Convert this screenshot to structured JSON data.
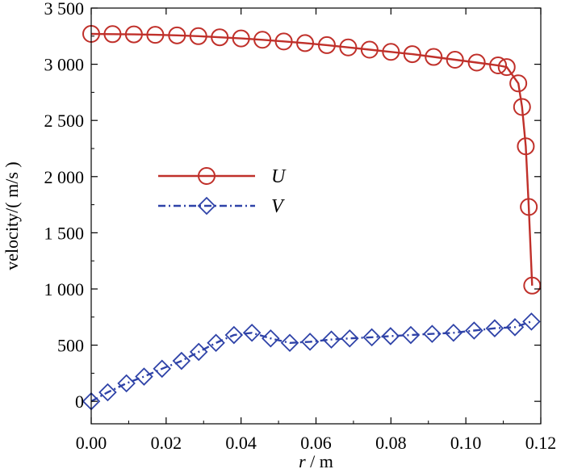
{
  "chart_data": {
    "type": "line",
    "xlabel_var": "r",
    "xlabel_unit": " / m",
    "ylabel": "velocity/( m/s )",
    "xlim": [
      0.0,
      0.12
    ],
    "ylim": [
      -200,
      3500
    ],
    "x_ticks": [
      0.0,
      0.02,
      0.04,
      0.06,
      0.08,
      0.1,
      0.12
    ],
    "x_tick_labels": [
      "0.00",
      "0.02",
      "0.04",
      "0.06",
      "0.08",
      "0.10",
      "0.12"
    ],
    "y_ticks": [
      0,
      500,
      1000,
      1500,
      2000,
      2500,
      3000,
      3500
    ],
    "y_tick_labels": [
      "0",
      "500",
      "1 000",
      "1 500",
      "2 000",
      "2 500",
      "3 000",
      "3 500"
    ],
    "grid": false,
    "legend_position": "middle-left",
    "series": [
      {
        "name": "U",
        "color": "#c0302a",
        "marker": "circle",
        "line": "solid",
        "points": [
          [
            0.0,
            3270
          ],
          [
            0.0057,
            3268
          ],
          [
            0.0114,
            3266
          ],
          [
            0.0171,
            3262
          ],
          [
            0.0229,
            3257
          ],
          [
            0.0286,
            3250
          ],
          [
            0.0343,
            3240
          ],
          [
            0.04,
            3230
          ],
          [
            0.0457,
            3218
          ],
          [
            0.0514,
            3203
          ],
          [
            0.0571,
            3188
          ],
          [
            0.0629,
            3170
          ],
          [
            0.0686,
            3150
          ],
          [
            0.0743,
            3130
          ],
          [
            0.08,
            3110
          ],
          [
            0.0857,
            3090
          ],
          [
            0.0914,
            3065
          ],
          [
            0.0971,
            3040
          ],
          [
            0.1029,
            3015
          ],
          [
            0.1086,
            2990
          ],
          [
            0.1109,
            2975
          ],
          [
            0.114,
            2830
          ],
          [
            0.115,
            2620
          ],
          [
            0.116,
            2270
          ],
          [
            0.1168,
            1730
          ],
          [
            0.1177,
            1030
          ]
        ]
      },
      {
        "name": "V",
        "color": "#2f43a8",
        "marker": "diamond",
        "line": "dash-dot",
        "points": [
          [
            0.0,
            0
          ],
          [
            0.0044,
            80
          ],
          [
            0.0094,
            160
          ],
          [
            0.0141,
            220
          ],
          [
            0.0189,
            290
          ],
          [
            0.0241,
            360
          ],
          [
            0.0287,
            440
          ],
          [
            0.0333,
            520
          ],
          [
            0.0381,
            590
          ],
          [
            0.0429,
            610
          ],
          [
            0.0479,
            560
          ],
          [
            0.053,
            520
          ],
          [
            0.0584,
            530
          ],
          [
            0.0641,
            550
          ],
          [
            0.069,
            560
          ],
          [
            0.0749,
            570
          ],
          [
            0.0799,
            580
          ],
          [
            0.0853,
            590
          ],
          [
            0.091,
            600
          ],
          [
            0.0967,
            610
          ],
          [
            0.1022,
            630
          ],
          [
            0.1077,
            650
          ],
          [
            0.1131,
            660
          ],
          [
            0.1175,
            710
          ]
        ]
      }
    ]
  }
}
